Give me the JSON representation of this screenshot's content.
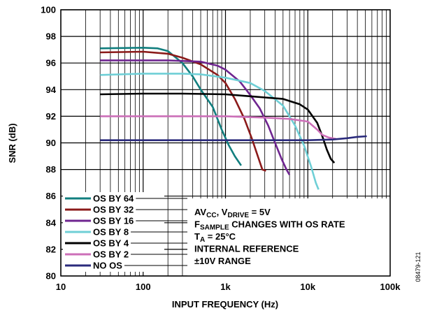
{
  "figure_id": "08479-121",
  "chart_data": {
    "type": "line",
    "xlabel": "INPUT FREQUENCY (Hz)",
    "ylabel": "SNR (dB)",
    "x_scale": "log",
    "xlim": [
      10,
      100000
    ],
    "ylim": [
      80,
      100
    ],
    "x_ticks": [
      10,
      100,
      1000,
      10000,
      100000
    ],
    "x_tick_labels": [
      "10",
      "100",
      "1k",
      "10k",
      "100k"
    ],
    "y_ticks": [
      80,
      82,
      84,
      86,
      88,
      90,
      92,
      94,
      96,
      98,
      100
    ],
    "y_tick_labels": [
      "80",
      "82",
      "84",
      "86",
      "88",
      "90",
      "92",
      "94",
      "96",
      "98",
      "100"
    ],
    "grid": true,
    "legend_position": "bottom-left",
    "annotation": {
      "lines": [
        {
          "parts": [
            {
              "t": "AV"
            },
            {
              "t": "CC",
              "sub": true
            },
            {
              "t": ", V"
            },
            {
              "t": "DRIVE",
              "sub": true
            },
            {
              "t": " = 5V"
            }
          ]
        },
        {
          "parts": [
            {
              "t": "F"
            },
            {
              "t": "SAMPLE",
              "sub": true
            },
            {
              "t": " CHANGES WITH OS RATE"
            }
          ]
        },
        {
          "parts": [
            {
              "t": "T"
            },
            {
              "t": "A",
              "sub": true
            },
            {
              "t": " = 25°C"
            }
          ]
        },
        {
          "parts": [
            {
              "t": "INTERNAL REFERENCE"
            }
          ]
        },
        {
          "parts": [
            {
              "t": "±10V RANGE"
            }
          ]
        }
      ]
    },
    "series": [
      {
        "name": "OS BY 64",
        "color": "#127f7f",
        "points": [
          [
            30,
            97.1
          ],
          [
            100,
            97.15
          ],
          [
            150,
            97.1
          ],
          [
            200,
            96.9
          ],
          [
            300,
            96.0
          ],
          [
            400,
            95.0
          ],
          [
            500,
            94.0
          ],
          [
            700,
            92.7
          ],
          [
            900,
            91.0
          ],
          [
            1100,
            89.8
          ],
          [
            1300,
            89.0
          ],
          [
            1550,
            88.3
          ]
        ]
      },
      {
        "name": "OS BY 32",
        "color": "#8b1a1a",
        "points": [
          [
            30,
            96.8
          ],
          [
            100,
            96.85
          ],
          [
            200,
            96.7
          ],
          [
            300,
            96.4
          ],
          [
            500,
            95.9
          ],
          [
            800,
            95.1
          ],
          [
            1000,
            94.5
          ],
          [
            1300,
            93.3
          ],
          [
            1700,
            91.8
          ],
          [
            2100,
            90.3
          ],
          [
            2500,
            88.9
          ],
          [
            2800,
            88.0
          ],
          [
            3100,
            87.9
          ]
        ]
      },
      {
        "name": "OS BY 16",
        "color": "#6f2590",
        "points": [
          [
            30,
            96.2
          ],
          [
            200,
            96.2
          ],
          [
            500,
            96.1
          ],
          [
            800,
            95.8
          ],
          [
            1000,
            95.5
          ],
          [
            1500,
            94.6
          ],
          [
            2000,
            93.6
          ],
          [
            2600,
            92.6
          ],
          [
            3300,
            91.3
          ],
          [
            4000,
            90.0
          ],
          [
            4800,
            88.8
          ],
          [
            5500,
            88.0
          ],
          [
            6000,
            87.6
          ]
        ]
      },
      {
        "name": "OS BY 8",
        "color": "#6fcfd6",
        "points": [
          [
            30,
            95.1
          ],
          [
            100,
            95.2
          ],
          [
            300,
            95.2
          ],
          [
            500,
            95.15
          ],
          [
            1000,
            94.9
          ],
          [
            2000,
            94.5
          ],
          [
            3000,
            93.9
          ],
          [
            5000,
            92.8
          ],
          [
            7000,
            91.3
          ],
          [
            9000,
            89.8
          ],
          [
            11000,
            88.2
          ],
          [
            12500,
            87.0
          ],
          [
            13500,
            86.5
          ]
        ]
      },
      {
        "name": "OS BY 4",
        "color": "#000000",
        "points": [
          [
            30,
            93.65
          ],
          [
            100,
            93.7
          ],
          [
            300,
            93.7
          ],
          [
            1000,
            93.65
          ],
          [
            2000,
            93.5
          ],
          [
            5000,
            93.3
          ],
          [
            8000,
            92.9
          ],
          [
            10000,
            92.5
          ],
          [
            13000,
            91.5
          ],
          [
            15000,
            90.5
          ],
          [
            17000,
            89.5
          ],
          [
            19000,
            88.8
          ],
          [
            21000,
            88.5
          ]
        ]
      },
      {
        "name": "OS BY 2",
        "color": "#cc6fb8",
        "points": [
          [
            30,
            92.0
          ],
          [
            100,
            92.0
          ],
          [
            300,
            92.0
          ],
          [
            1000,
            92.0
          ],
          [
            3000,
            91.9
          ],
          [
            6000,
            91.8
          ],
          [
            10000,
            91.6
          ],
          [
            13000,
            91.0
          ],
          [
            15000,
            90.6
          ],
          [
            18000,
            90.4
          ],
          [
            22000,
            90.3
          ]
        ]
      },
      {
        "name": "NO OS",
        "color": "#2a2a7c",
        "points": [
          [
            30,
            90.2
          ],
          [
            100,
            90.2
          ],
          [
            1000,
            90.2
          ],
          [
            10000,
            90.2
          ],
          [
            20000,
            90.25
          ],
          [
            30000,
            90.35
          ],
          [
            40000,
            90.45
          ],
          [
            52000,
            90.5
          ]
        ]
      }
    ]
  }
}
